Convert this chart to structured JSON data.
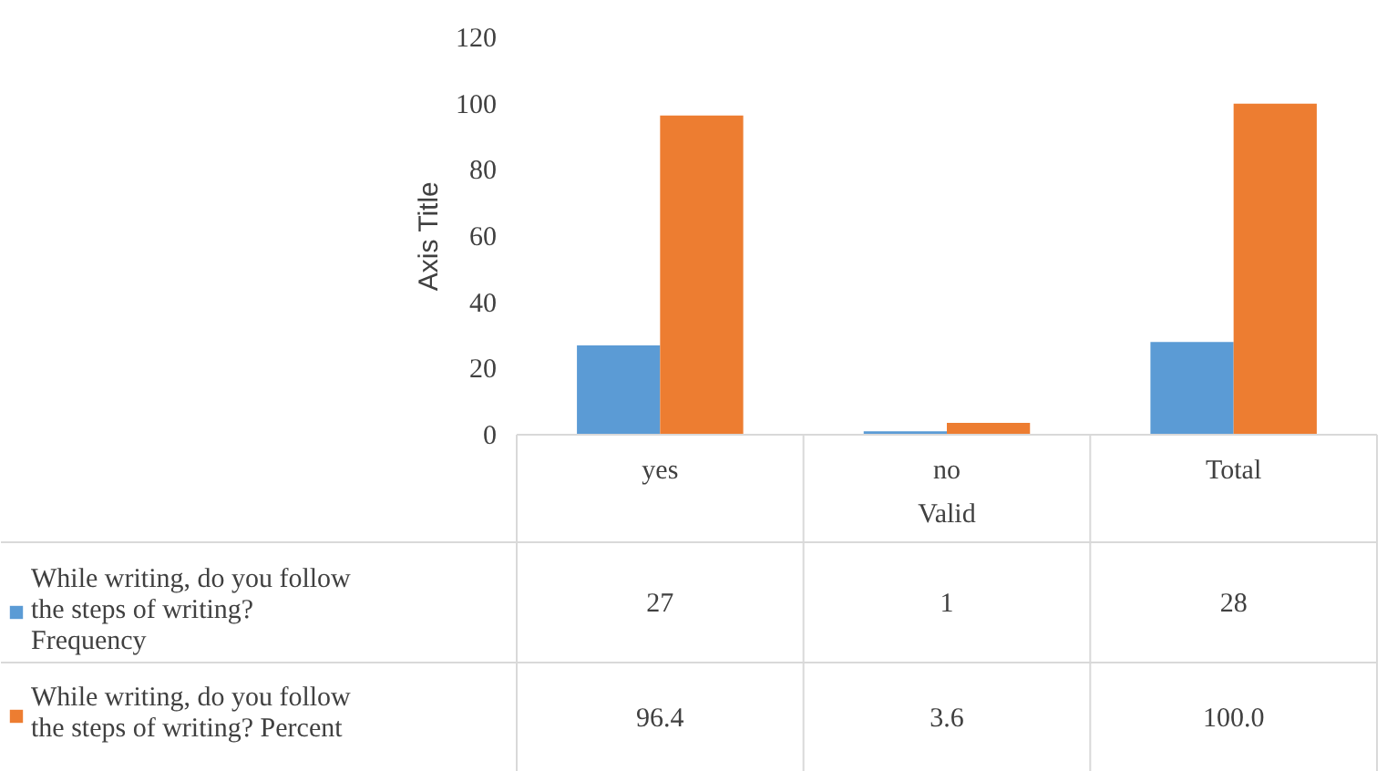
{
  "chart_data": {
    "type": "bar",
    "xlabel": "Valid",
    "ylabel": "Axis Title",
    "categories": [
      "yes",
      "no",
      "Total"
    ],
    "series": [
      {
        "name": "While writing, do you follow the steps of writing? Frequency",
        "color": "#5b9bd5",
        "values": [
          27,
          1,
          28
        ],
        "value_labels": [
          "27",
          "1",
          "28"
        ]
      },
      {
        "name": "While writing, do you follow the steps of writing? Percent",
        "color": "#ed7d31",
        "values": [
          96.4,
          3.6,
          100.0
        ],
        "value_labels": [
          "96.4",
          "3.6",
          "100.0"
        ]
      }
    ],
    "ylim": [
      0,
      120
    ],
    "yticks": [
      0,
      20,
      40,
      60,
      80,
      100,
      120
    ],
    "grid": false,
    "legend": "bottom left"
  }
}
